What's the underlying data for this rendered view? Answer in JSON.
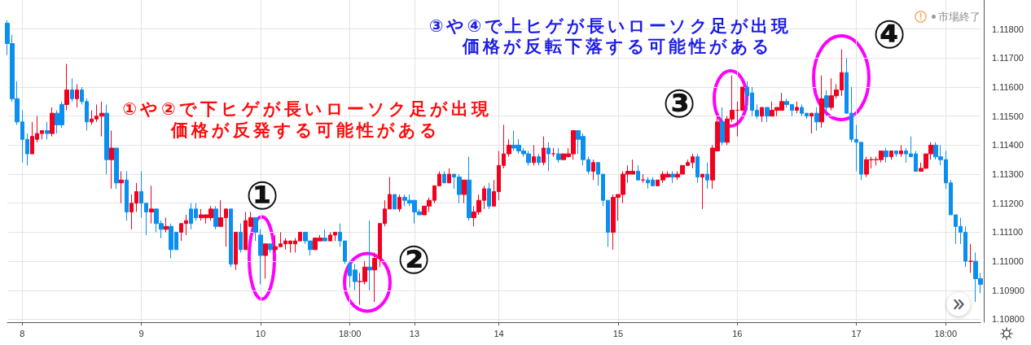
{
  "chart_data": {
    "type": "candlestick",
    "categories": [
      null,
      null,
      null,
      "8",
      null,
      null,
      null,
      null,
      null,
      null,
      null,
      null,
      null,
      null,
      null,
      null,
      null,
      null,
      null,
      null,
      null,
      null,
      null,
      null,
      null,
      null,
      null,
      "9",
      null,
      null,
      null,
      null,
      null,
      null,
      null,
      null,
      null,
      null,
      null,
      null,
      null,
      null,
      null,
      null,
      null,
      null,
      null,
      null,
      null,
      null,
      null,
      "10",
      null,
      null,
      null,
      null,
      null,
      null,
      null,
      null,
      null,
      null,
      null,
      null,
      null,
      null,
      null,
      null,
      null,
      "18:00",
      null,
      null,
      null,
      null,
      null,
      null,
      null,
      null,
      null,
      null,
      null,
      null,
      "13",
      null,
      null,
      null,
      null,
      null,
      null,
      null,
      null,
      null,
      null,
      null,
      null,
      null,
      null,
      null,
      null,
      "14",
      null,
      null,
      null,
      null,
      null,
      null,
      null,
      null,
      null,
      null,
      null,
      null,
      null,
      null,
      null,
      null,
      null,
      null,
      null,
      null,
      null,
      null,
      null,
      "15",
      null,
      null,
      null,
      null,
      null,
      null,
      null,
      null,
      null,
      null,
      null,
      null,
      null,
      null,
      null,
      null,
      null,
      null,
      null,
      null,
      null,
      null,
      null,
      "16",
      null,
      null,
      null,
      null,
      null,
      null,
      null,
      null,
      null,
      null,
      null,
      null,
      null,
      null,
      null,
      null,
      null,
      null,
      null,
      null,
      null,
      null,
      null,
      "17",
      null,
      null,
      null,
      null,
      null,
      null,
      null,
      null,
      null,
      null,
      null,
      null,
      null,
      null,
      null,
      null,
      null,
      "18:00",
      null,
      null,
      null,
      null,
      null,
      null,
      null
    ],
    "ohlc": [
      [
        1.1182,
        1.1183,
        1.1171,
        1.1175
      ],
      [
        1.1175,
        1.1178,
        1.1155,
        1.1156
      ],
      [
        1.1156,
        1.1162,
        1.1147,
        1.1148
      ],
      [
        1.1148,
        1.1152,
        1.1134,
        1.1142
      ],
      [
        1.1142,
        1.1144,
        1.1133,
        1.1137
      ],
      [
        1.1137,
        1.1148,
        1.1137,
        1.1143
      ],
      [
        1.1142,
        1.115,
        1.1141,
        1.1144
      ],
      [
        1.1144,
        1.1145,
        1.1142,
        1.1145
      ],
      [
        1.1145,
        1.1148,
        1.1142,
        1.1144
      ],
      [
        1.1144,
        1.1153,
        1.1143,
        1.1151
      ],
      [
        1.1151,
        1.1152,
        1.1144,
        1.1147
      ],
      [
        1.1154,
        1.1155,
        1.1146,
        1.1147
      ],
      [
        1.1154,
        1.1168,
        1.1152,
        1.1159
      ],
      [
        1.1159,
        1.1163,
        1.1155,
        1.1156
      ],
      [
        1.1156,
        1.1161,
        1.1153,
        1.1159
      ],
      [
        1.1159,
        1.116,
        1.1154,
        1.1155
      ],
      [
        1.1155,
        1.1156,
        1.1145,
        1.1148
      ],
      [
        1.1148,
        1.1152,
        1.1147,
        1.1149
      ],
      [
        1.1149,
        1.1154,
        1.1148,
        1.115
      ],
      [
        1.115,
        1.1155,
        1.1143,
        1.1151
      ],
      [
        1.1151,
        1.1154,
        1.113,
        1.1135
      ],
      [
        1.1135,
        1.1145,
        1.1125,
        1.1139
      ],
      [
        1.1139,
        1.1139,
        1.1125,
        1.1127
      ],
      [
        1.1127,
        1.1131,
        1.112,
        1.1128
      ],
      [
        1.1128,
        1.1131,
        1.1114,
        1.1117
      ],
      [
        1.1117,
        1.1123,
        1.1111,
        1.112
      ],
      [
        1.112,
        1.1127,
        1.1117,
        1.1124
      ],
      [
        1.1124,
        1.1131,
        1.1115,
        1.112
      ],
      [
        1.112,
        1.112,
        1.1109,
        1.1117
      ],
      [
        1.1117,
        1.1126,
        1.1113,
        1.1118
      ],
      [
        1.1118,
        1.1118,
        1.111,
        1.1113
      ],
      [
        1.1113,
        1.1114,
        1.1108,
        1.1111
      ],
      [
        1.1111,
        1.1115,
        1.111,
        1.1112
      ],
      [
        1.1112,
        1.1113,
        1.1101,
        1.1104
      ],
      [
        1.111,
        1.111,
        1.1104,
        1.1104
      ],
      [
        1.111,
        1.1113,
        1.1107,
        1.1113
      ],
      [
        1.1113,
        1.1116,
        1.1109,
        1.1114
      ],
      [
        1.1118,
        1.112,
        1.1111,
        1.1113
      ],
      [
        1.1118,
        1.112,
        1.1114,
        1.1115
      ],
      [
        1.1115,
        1.1118,
        1.1114,
        1.1116
      ],
      [
        1.1115,
        1.1116,
        1.1113,
        1.1116
      ],
      [
        1.1115,
        1.1119,
        1.1114,
        1.1118
      ],
      [
        1.1118,
        1.1119,
        1.1111,
        1.1112
      ],
      [
        1.1112,
        1.1121,
        1.1112,
        1.1115
      ],
      [
        1.1115,
        1.1118,
        1.1105,
        1.1118
      ],
      [
        1.1118,
        1.1118,
        1.1098,
        1.1099
      ],
      [
        1.1099,
        1.111,
        1.1097,
        1.111
      ],
      [
        1.111,
        1.1113,
        1.1103,
        1.1104
      ],
      [
        1.1104,
        1.1117,
        1.1104,
        1.1114
      ],
      [
        1.1112,
        1.1117,
        1.1112,
        1.1115
      ],
      [
        1.1115,
        1.1115,
        1.1107,
        1.111
      ],
      [
        1.1109,
        1.1111,
        1.1092,
        1.1102
      ],
      [
        1.1102,
        1.1106,
        1.1094,
        1.1106
      ],
      [
        1.1106,
        1.1106,
        1.1103,
        1.1104
      ],
      [
        1.1104,
        1.1109,
        1.1103,
        1.1105
      ],
      [
        1.1105,
        1.111,
        1.1105,
        1.1106
      ],
      [
        1.1106,
        1.1108,
        1.1104,
        1.1107
      ],
      [
        1.1106,
        1.1107,
        1.1103,
        1.1107
      ],
      [
        1.1106,
        1.1108,
        1.1103,
        1.1107
      ],
      [
        1.1107,
        1.111,
        1.1107,
        1.111
      ],
      [
        1.111,
        1.111,
        1.1106,
        1.1107
      ],
      [
        1.1107,
        1.1107,
        1.1102,
        1.1104
      ],
      [
        1.1104,
        1.1108,
        1.1104,
        1.1108
      ],
      [
        1.1107,
        1.1109,
        1.1107,
        1.1108
      ],
      [
        1.1108,
        1.1111,
        1.1107,
        1.1107
      ],
      [
        1.1107,
        1.111,
        1.1107,
        1.1109
      ],
      [
        1.1109,
        1.111,
        1.1107,
        1.111
      ],
      [
        1.111,
        1.1113,
        1.1105,
        1.1107
      ],
      [
        1.1107,
        1.1107,
        1.1099,
        1.11
      ],
      [
        1.1099,
        1.11,
        1.1091,
        1.1095
      ],
      [
        1.1097,
        1.1099,
        1.109,
        1.1093
      ],
      [
        1.1093,
        1.1096,
        1.1085,
        1.1093
      ],
      [
        1.1093,
        1.11,
        1.1092,
        1.1098
      ],
      [
        1.1098,
        1.1114,
        1.109,
        1.1097
      ],
      [
        1.1097,
        1.1103,
        1.1086,
        1.1101
      ],
      [
        1.1101,
        1.1113,
        1.1098,
        1.1113
      ],
      [
        1.1113,
        1.1121,
        1.1112,
        1.1118
      ],
      [
        1.1118,
        1.1129,
        1.1118,
        1.1123
      ],
      [
        1.1123,
        1.1123,
        1.1118,
        1.1118
      ],
      [
        1.1118,
        1.1123,
        1.1117,
        1.1122
      ],
      [
        1.1122,
        1.1123,
        1.1119,
        1.1121
      ],
      [
        1.1121,
        1.1123,
        1.1119,
        1.112
      ],
      [
        1.1121,
        1.1121,
        1.1113,
        1.1117
      ],
      [
        1.1117,
        1.1118,
        1.1116,
        1.1116
      ],
      [
        1.1116,
        1.1119,
        1.1116,
        1.1119
      ],
      [
        1.1119,
        1.1122,
        1.1117,
        1.1121
      ],
      [
        1.1121,
        1.1126,
        1.112,
        1.1126
      ],
      [
        1.1126,
        1.1131,
        1.1126,
        1.113
      ],
      [
        1.113,
        1.1131,
        1.1127,
        1.1127
      ],
      [
        1.1127,
        1.1132,
        1.1127,
        1.113
      ],
      [
        1.113,
        1.113,
        1.1125,
        1.1129
      ],
      [
        1.1129,
        1.113,
        1.112,
        1.1123
      ],
      [
        1.1123,
        1.1128,
        1.112,
        1.1128
      ],
      [
        1.1128,
        1.1136,
        1.1114,
        1.1115
      ],
      [
        1.1115,
        1.1119,
        1.1112,
        1.1117
      ],
      [
        1.1117,
        1.1123,
        1.1116,
        1.1121
      ],
      [
        1.1121,
        1.1126,
        1.1118,
        1.1125
      ],
      [
        1.1125,
        1.1127,
        1.1118,
        1.1119
      ],
      [
        1.1119,
        1.1128,
        1.1119,
        1.1124
      ],
      [
        1.1124,
        1.1138,
        1.1121,
        1.1133
      ],
      [
        1.1133,
        1.1147,
        1.1132,
        1.1137
      ],
      [
        1.1137,
        1.1142,
        1.1136,
        1.114
      ],
      [
        1.114,
        1.1145,
        1.1138,
        1.1139
      ],
      [
        1.114,
        1.1142,
        1.1137,
        1.1138
      ],
      [
        1.1138,
        1.1139,
        1.1136,
        1.1137
      ],
      [
        1.1137,
        1.1138,
        1.1133,
        1.1134
      ],
      [
        1.1134,
        1.114,
        1.1133,
        1.1136
      ],
      [
        1.1136,
        1.1137,
        1.1133,
        1.1134
      ],
      [
        1.1134,
        1.1143,
        1.1133,
        1.1139
      ],
      [
        1.1139,
        1.1141,
        1.1131,
        1.1137
      ],
      [
        1.1137,
        1.1139,
        1.1136,
        1.1137
      ],
      [
        1.1137,
        1.1139,
        1.1134,
        1.1135
      ],
      [
        1.1135,
        1.1137,
        1.1135,
        1.1137
      ],
      [
        1.1136,
        1.1139,
        1.1136,
        1.1137
      ],
      [
        1.1137,
        1.1145,
        1.1135,
        1.1145
      ],
      [
        1.1145,
        1.1145,
        1.1137,
        1.1142
      ],
      [
        1.1143,
        1.1144,
        1.1133,
        1.1135
      ],
      [
        1.1135,
        1.1136,
        1.113,
        1.1131
      ],
      [
        1.1131,
        1.1135,
        1.1128,
        1.1134
      ],
      [
        1.1134,
        1.1134,
        1.1126,
        1.113
      ],
      [
        1.113,
        1.113,
        1.1119,
        1.1121
      ],
      [
        1.1121,
        1.1121,
        1.1105,
        1.111
      ],
      [
        1.111,
        1.1123,
        1.1104,
        1.1122
      ],
      [
        1.1122,
        1.1123,
        1.1114,
        1.1123
      ],
      [
        1.1123,
        1.1131,
        1.112,
        1.113
      ],
      [
        1.113,
        1.1133,
        1.1127,
        1.1131
      ],
      [
        1.113,
        1.1135,
        1.113,
        1.1131
      ],
      [
        1.1131,
        1.1133,
        1.1128,
        1.1128
      ],
      [
        1.1128,
        1.113,
        1.1127,
        1.1128
      ],
      [
        1.1128,
        1.1129,
        1.1125,
        1.1127
      ],
      [
        1.1128,
        1.1129,
        1.1126,
        1.1126
      ],
      [
        1.1126,
        1.1128,
        1.1126,
        1.1128
      ],
      [
        1.1128,
        1.1131,
        1.1127,
        1.113
      ],
      [
        1.1129,
        1.1131,
        1.1129,
        1.113
      ],
      [
        1.113,
        1.1131,
        1.1127,
        1.1129
      ],
      [
        1.1129,
        1.1131,
        1.1128,
        1.113
      ],
      [
        1.113,
        1.1133,
        1.113,
        1.1133
      ],
      [
        1.1133,
        1.1135,
        1.1133,
        1.1134
      ],
      [
        1.1134,
        1.1137,
        1.1132,
        1.1136
      ],
      [
        1.1136,
        1.1137,
        1.1127,
        1.1129
      ],
      [
        1.1129,
        1.113,
        1.1118,
        1.113
      ],
      [
        1.113,
        1.1134,
        1.1125,
        1.1128
      ],
      [
        1.1128,
        1.114,
        1.1125,
        1.1139
      ],
      [
        1.1138,
        1.115,
        1.1138,
        1.1148
      ],
      [
        1.1148,
        1.1153,
        1.114,
        1.1141
      ],
      [
        1.1141,
        1.115,
        1.114,
        1.1149
      ],
      [
        1.1149,
        1.1164,
        1.1148,
        1.1152
      ],
      [
        1.1152,
        1.1155,
        1.1143,
        1.1152
      ],
      [
        1.1152,
        1.116,
        1.1152,
        1.116
      ],
      [
        1.116,
        1.1162,
        1.1152,
        1.1157
      ],
      [
        1.1158,
        1.116,
        1.115,
        1.1152
      ],
      [
        1.1152,
        1.1154,
        1.1149,
        1.115
      ],
      [
        1.115,
        1.1153,
        1.1148,
        1.1153
      ],
      [
        1.1153,
        1.1153,
        1.1148,
        1.115
      ],
      [
        1.115,
        1.1155,
        1.115,
        1.1152
      ],
      [
        1.1152,
        1.1153,
        1.115,
        1.1153
      ],
      [
        1.1152,
        1.1158,
        1.1152,
        1.1155
      ],
      [
        1.1155,
        1.1156,
        1.1153,
        1.1154
      ],
      [
        1.1154,
        1.1154,
        1.115,
        1.1152
      ],
      [
        1.1152,
        1.1155,
        1.1151,
        1.1153
      ],
      [
        1.1153,
        1.1154,
        1.115,
        1.1151
      ],
      [
        1.1151,
        1.1151,
        1.1149,
        1.115
      ],
      [
        1.115,
        1.1151,
        1.1144,
        1.1151
      ],
      [
        1.1151,
        1.1153,
        1.1145,
        1.1148
      ],
      [
        1.1148,
        1.1164,
        1.1146,
        1.1156
      ],
      [
        1.1157,
        1.1159,
        1.115,
        1.1153
      ],
      [
        1.1153,
        1.1163,
        1.1152,
        1.1157
      ],
      [
        1.1157,
        1.1161,
        1.1156,
        1.1159
      ],
      [
        1.1159,
        1.1173,
        1.1157,
        1.1165
      ],
      [
        1.1165,
        1.117,
        1.1151,
        1.1151
      ],
      [
        1.1151,
        1.116,
        1.1141,
        1.1142
      ],
      [
        1.1142,
        1.1147,
        1.1131,
        1.1141
      ],
      [
        1.1141,
        1.1141,
        1.1128,
        1.113
      ],
      [
        1.113,
        1.1136,
        1.1129,
        1.1135
      ],
      [
        1.1135,
        1.1136,
        1.1132,
        1.1135
      ],
      [
        1.1135,
        1.1136,
        1.1133,
        1.1135
      ],
      [
        1.1135,
        1.1138,
        1.1134,
        1.1138
      ],
      [
        1.1138,
        1.1139,
        1.1134,
        1.1136
      ],
      [
        1.1136,
        1.1138,
        1.1135,
        1.1138
      ],
      [
        1.1138,
        1.1138,
        1.1136,
        1.1137
      ],
      [
        1.1137,
        1.114,
        1.1136,
        1.1138
      ],
      [
        1.1138,
        1.1139,
        1.1134,
        1.1137
      ],
      [
        1.1137,
        1.1143,
        1.1136,
        1.1136
      ],
      [
        1.1137,
        1.1138,
        1.1131,
        1.1131
      ],
      [
        1.1131,
        1.1134,
        1.1131,
        1.1132
      ],
      [
        1.1132,
        1.1137,
        1.1132,
        1.1137
      ],
      [
        1.1137,
        1.1141,
        1.1135,
        1.114
      ],
      [
        1.114,
        1.1141,
        1.1135,
        1.1136
      ],
      [
        1.1136,
        1.114,
        1.1133,
        1.1135
      ],
      [
        1.1135,
        1.1138,
        1.1125,
        1.1127
      ],
      [
        1.1127,
        1.1128,
        1.1116,
        1.1116
      ],
      [
        1.1116,
        1.1116,
        1.1106,
        1.1112
      ],
      [
        1.1112,
        1.1115,
        1.1106,
        1.111
      ],
      [
        1.111,
        1.1112,
        1.1098,
        1.11
      ],
      [
        1.11,
        1.1106,
        1.1096,
        1.11
      ],
      [
        1.11,
        1.1103,
        1.1086,
        1.1094
      ],
      [
        1.1094,
        1.1096,
        1.1089,
        1.1092
      ]
    ],
    "colors": [
      "#0a8ff0",
      "#0a8ff0",
      "#0a8ff0",
      "#0a8ff0",
      "#0a8ff0",
      "#f2001e",
      "#f2001e",
      "#f2001e",
      "#0a8ff0",
      "#f2001e",
      "#0a8ff0",
      "#0a8ff0",
      "#f2001e",
      "#0a8ff0",
      "#f2001e",
      "#0a8ff0",
      "#0a8ff0",
      "#f2001e",
      "#f2001e",
      "#f2001e",
      "#0a8ff0",
      "#f2001e",
      "#0a8ff0",
      "#f2001e",
      "#0a8ff0",
      "#f2001e",
      "#f2001e",
      "#0a8ff0",
      "#0a8ff0",
      "#f2001e",
      "#0a8ff0",
      "#0a8ff0",
      "#f2001e",
      "#0a8ff0",
      "#0a8ff0",
      "#f2001e",
      "#f2001e",
      "#0a8ff0",
      "#0a8ff0",
      "#f2001e",
      "#f2001e",
      "#f2001e",
      "#0a8ff0",
      "#f2001e",
      "#f2001e",
      "#0a8ff0",
      "#f2001e",
      "#0a8ff0",
      "#f2001e",
      "#f2001e",
      "#0a8ff0",
      "#0a8ff0",
      "#f2001e",
      "#0a8ff0",
      "#f2001e",
      "#f2001e",
      "#f2001e",
      "#f2001e",
      "#f2001e",
      "#f2001e",
      "#0a8ff0",
      "#0a8ff0",
      "#f2001e",
      "#f2001e",
      "#0a8ff0",
      "#f2001e",
      "#f2001e",
      "#0a8ff0",
      "#0a8ff0",
      "#0a8ff0",
      "#0a8ff0",
      "#f2001e",
      "#f2001e",
      "#0a8ff0",
      "#f2001e",
      "#f2001e",
      "#f2001e",
      "#f2001e",
      "#0a8ff0",
      "#f2001e",
      "#0a8ff0",
      "#0a8ff0",
      "#0a8ff0",
      "#0a8ff0",
      "#f2001e",
      "#f2001e",
      "#f2001e",
      "#f2001e",
      "#0a8ff0",
      "#f2001e",
      "#0a8ff0",
      "#0a8ff0",
      "#f2001e",
      "#0a8ff0",
      "#f2001e",
      "#f2001e",
      "#f2001e",
      "#0a8ff0",
      "#f2001e",
      "#f2001e",
      "#f2001e",
      "#f2001e",
      "#0a8ff0",
      "#0a8ff0",
      "#0a8ff0",
      "#0a8ff0",
      "#f2001e",
      "#0a8ff0",
      "#f2001e",
      "#0a8ff0",
      "#f2001e",
      "#0a8ff0",
      "#f2001e",
      "#f2001e",
      "#f2001e",
      "#0a8ff0",
      "#0a8ff0",
      "#0a8ff0",
      "#f2001e",
      "#0a8ff0",
      "#0a8ff0",
      "#0a8ff0",
      "#f2001e",
      "#f2001e",
      "#f2001e",
      "#f2001e",
      "#f2001e",
      "#0a8ff0",
      "#f2001e",
      "#0a8ff0",
      "#0a8ff0",
      "#f2001e",
      "#f2001e",
      "#f2001e",
      "#0a8ff0",
      "#f2001e",
      "#f2001e",
      "#f2001e",
      "#f2001e",
      "#0a8ff0",
      "#f2001e",
      "#0a8ff0",
      "#f2001e",
      "#f2001e",
      "#0a8ff0",
      "#f2001e",
      "#f2001e",
      "#f2001e",
      "#f2001e",
      "#0a8ff0",
      "#0a8ff0",
      "#0a8ff0",
      "#f2001e",
      "#0a8ff0",
      "#f2001e",
      "#f2001e",
      "#f2001e",
      "#0a8ff0",
      "#0a8ff0",
      "#f2001e",
      "#0a8ff0",
      "#0a8ff0",
      "#f2001e",
      "#0a8ff0",
      "#f2001e",
      "#0a8ff0",
      "#f2001e",
      "#f2001e",
      "#f2001e",
      "#0a8ff0",
      "#0a8ff0",
      "#0a8ff0",
      "#0a8ff0",
      "#f2001e",
      "#f2001e",
      "#f2001e",
      "#f2001e",
      "#0a8ff0",
      "#f2001e",
      "#0a8ff0",
      "#f2001e",
      "#0a8ff0",
      "#0a8ff0",
      "#0a8ff0",
      "#f2001e",
      "#f2001e",
      "#f2001e",
      "#0a8ff0",
      "#0a8ff0",
      "#0a8ff0",
      "#0a8ff0",
      "#0a8ff0",
      "#0a8ff0",
      "#0a8ff0",
      "#f2001e",
      "#0a8ff0",
      "#0a8ff0"
    ],
    "ylim": [
      1.1079,
      1.119
    ],
    "yticks": [
      {
        "value": 1.108,
        "label": "1.10800"
      },
      {
        "value": 1.109,
        "label": "1.10900"
      },
      {
        "value": 1.11,
        "label": "1.11000"
      },
      {
        "value": 1.111,
        "label": "1.11100"
      },
      {
        "value": 1.112,
        "label": "1.11200"
      },
      {
        "value": 1.113,
        "label": "1.11300"
      },
      {
        "value": 1.114,
        "label": "1.11400"
      },
      {
        "value": 1.115,
        "label": "1.11500"
      },
      {
        "value": 1.116,
        "label": "1.11600"
      },
      {
        "value": 1.117,
        "label": "1.11700"
      },
      {
        "value": 1.118,
        "label": "1.11800"
      }
    ],
    "grid": true,
    "annotations": [
      "①や②で下ヒゲが長いローソク足が出現",
      "価格が反発する可能性がある",
      "③や④で上ヒゲが長いローソク足が出現",
      "価格が反転下落する可能性がある",
      "①",
      "②",
      "③",
      "④",
      "市場終了"
    ]
  }
}
